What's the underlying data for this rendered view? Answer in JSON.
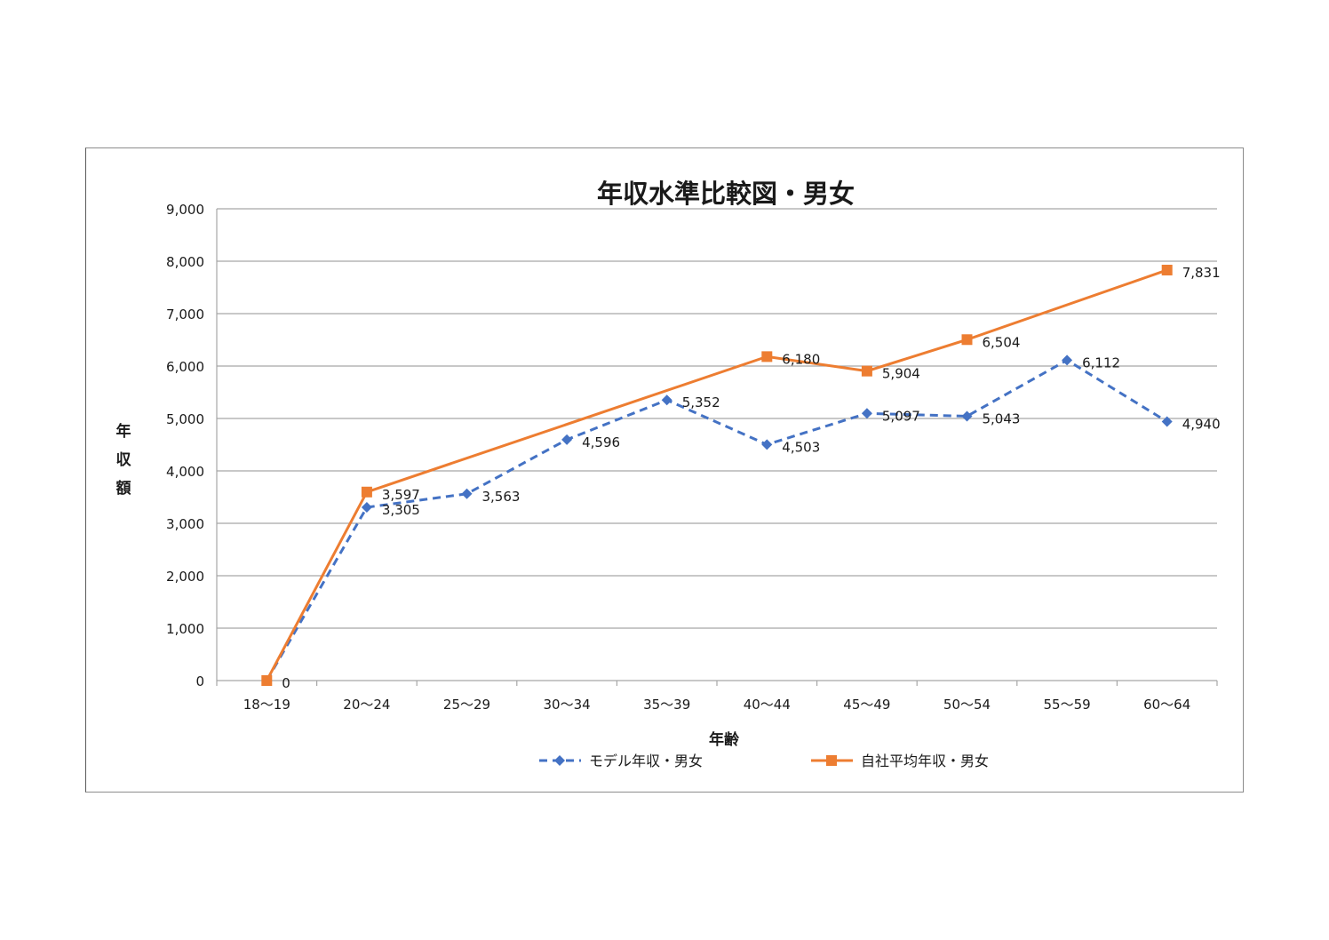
{
  "chart_data": {
    "type": "line",
    "title": "年収水準比較図・男女",
    "xlabel": "年齢",
    "ylabel": "年収額",
    "categories": [
      "18〜19",
      "20〜24",
      "25〜29",
      "30〜34",
      "35〜39",
      "40〜44",
      "45〜49",
      "50〜54",
      "55〜59",
      "60〜64"
    ],
    "ylim": [
      0,
      9000
    ],
    "yticks": [
      0,
      1000,
      2000,
      3000,
      4000,
      5000,
      6000,
      7000,
      8000,
      9000
    ],
    "ytick_labels": [
      "0",
      "1,000",
      "2,000",
      "3,000",
      "4,000",
      "5,000",
      "6,000",
      "7,000",
      "8,000",
      "9,000"
    ],
    "grid": true,
    "legend_position": "bottom",
    "series": [
      {
        "name": "モデル年収・男女",
        "color": "#4472C4",
        "line_style": "dashed",
        "marker": "diamond",
        "values": [
          0,
          3305,
          3563,
          4596,
          5352,
          4503,
          5097,
          5043,
          6112,
          4940
        ],
        "labels": [
          "",
          "3,305",
          "3,563",
          "4,596",
          "5,352",
          "4,503",
          "5,097",
          "5,043",
          "6,112",
          "4,940"
        ]
      },
      {
        "name": "自社平均年収・男女",
        "color": "#ED7D31",
        "line_style": "solid",
        "marker": "square",
        "skip_indices": [
          2,
          3,
          4
        ],
        "values": [
          0,
          3597,
          null,
          null,
          null,
          6180,
          5904,
          6504,
          null,
          7831
        ],
        "labels": [
          "0",
          "3,597",
          "",
          "",
          "",
          "6,180",
          "5,904",
          "6,504",
          "",
          "7,831"
        ]
      }
    ]
  }
}
